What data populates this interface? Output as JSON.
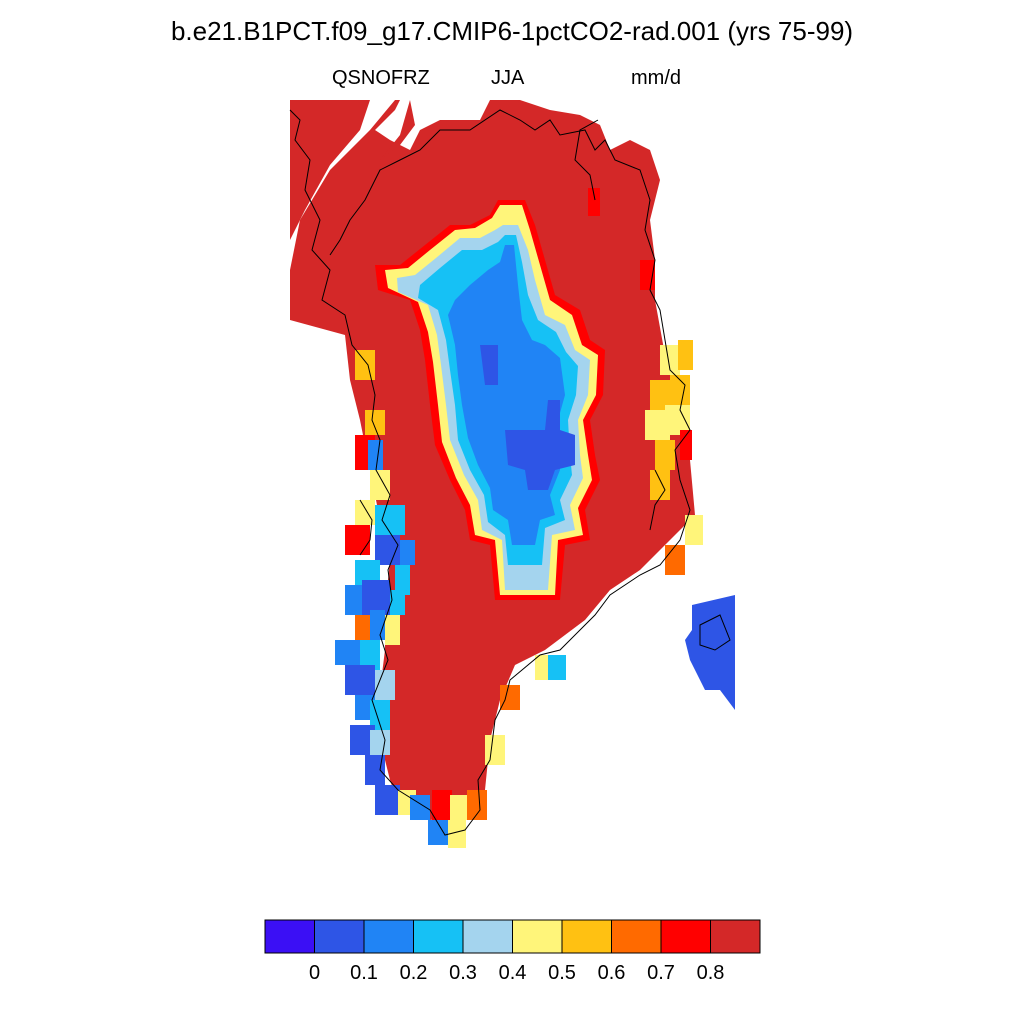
{
  "title": "b.e21.B1PCT.f09_g17.CMIP6-1pctCO2-rad.001 (yrs 75-99)",
  "variable": "QSNOFRZ",
  "season": "JJA",
  "units": "mm/d",
  "colorbar": {
    "colors": [
      "#3b0ff5",
      "#2e55e6",
      "#2084f5",
      "#16c1f5",
      "#a4d4ee",
      "#fff57a",
      "#ffc112",
      "#ff6a00",
      "#ff0000",
      "#d42828"
    ],
    "labels": [
      "0",
      "0.1",
      "0.2",
      "0.3",
      "0.4",
      "0.5",
      "0.6",
      "0.7",
      "0.8"
    ]
  },
  "palette": {
    "ice": "#d42828",
    "coast": "#000000"
  }
}
